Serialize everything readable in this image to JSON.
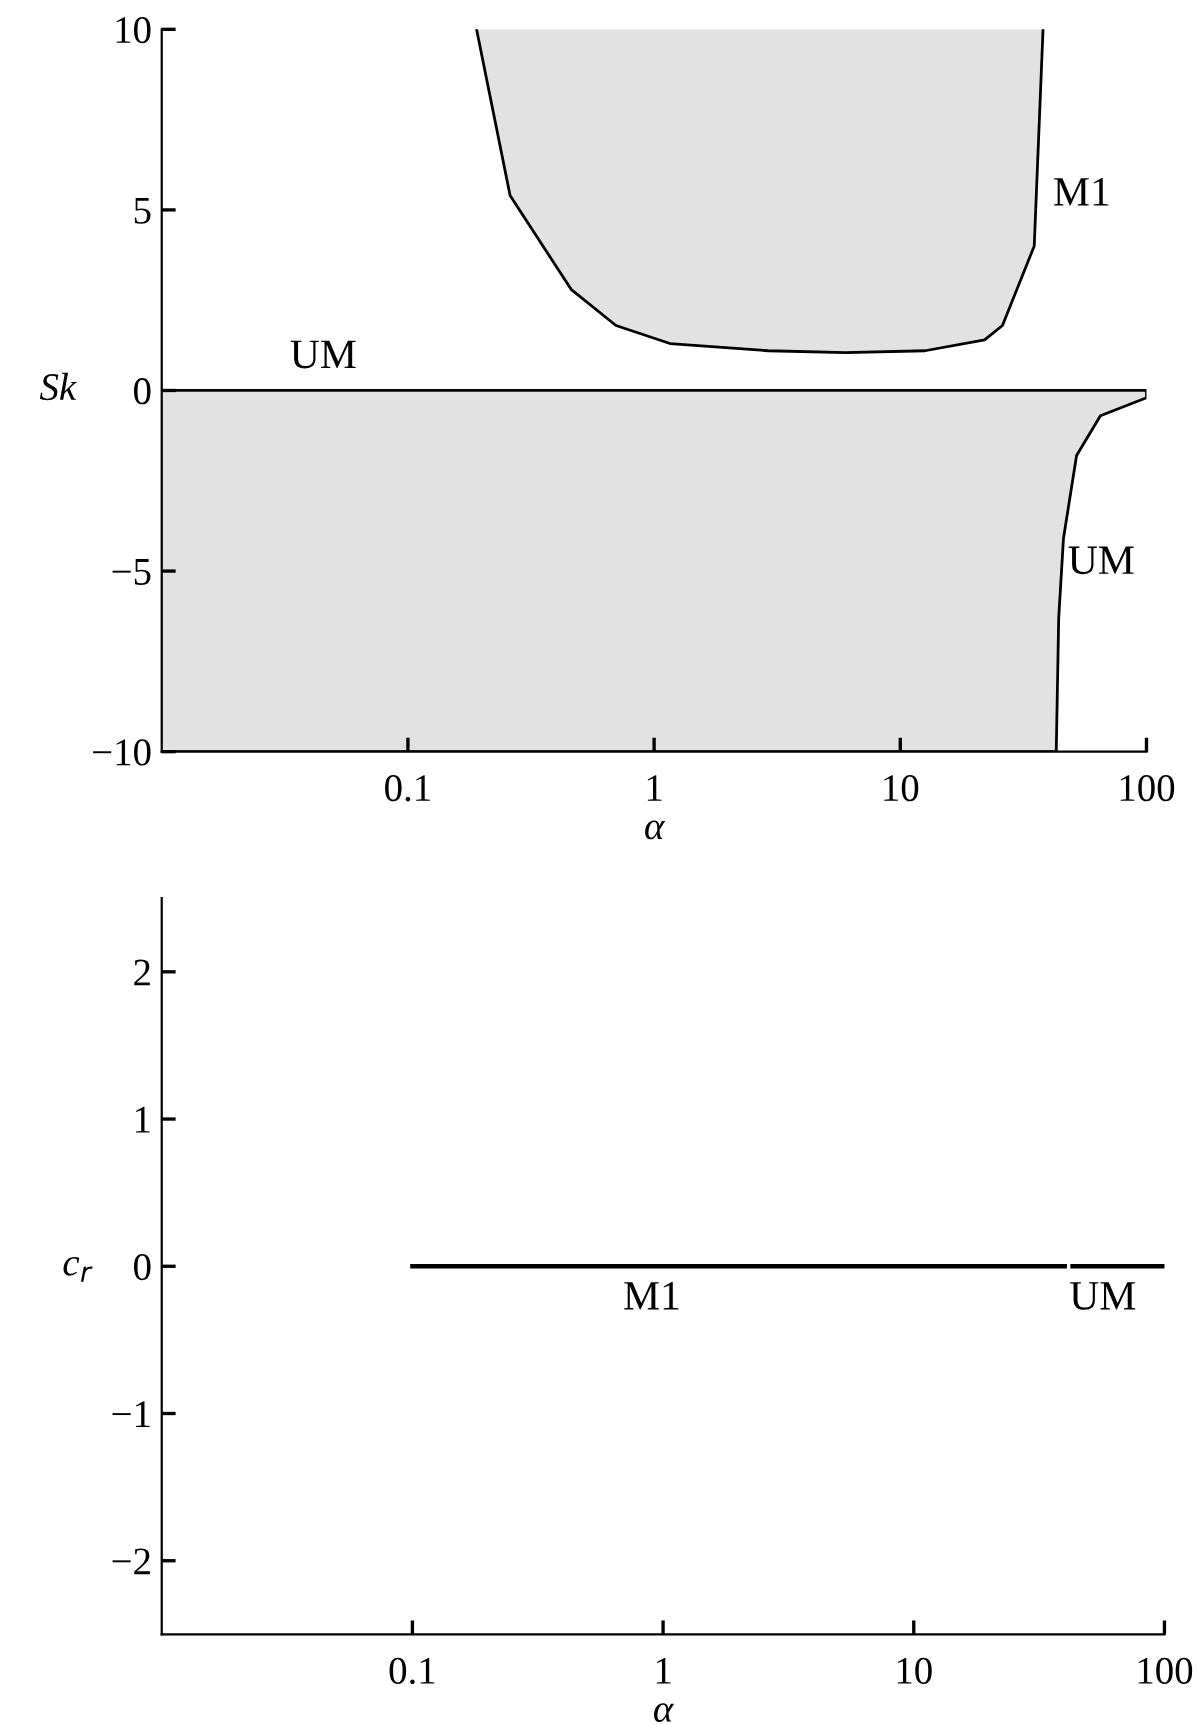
{
  "chart_data": [
    {
      "type": "area",
      "xlabel": "α",
      "ylabel": "Sk",
      "log": "x",
      "grid": false,
      "xlim": [
        0.01,
        100
      ],
      "ylim": [
        -10,
        10
      ],
      "xticks": [
        0.1,
        1,
        10,
        100
      ],
      "yticks": [
        -10,
        -5,
        0,
        5,
        10
      ],
      "series": [
        {
          "type": "area",
          "color": "#e2e2e2",
          "x": [
            0.19,
            0.26,
            0.46,
            0.7,
            1.16,
            2.9,
            6,
            12.6,
            22,
            26,
            35,
            38
          ],
          "values": [
            10,
            5.4,
            2.8,
            1.8,
            1.3,
            1.1,
            1.05,
            1.1,
            1.4,
            1.8,
            4.0,
            10
          ]
        },
        {
          "type": "area",
          "color": "#e2e2e2",
          "x": [
            0.01,
            43,
            44,
            46,
            52,
            65,
            100,
            100,
            0.01
          ],
          "values": [
            -10,
            -10,
            -6.3,
            -4.1,
            -1.8,
            -0.7,
            -0.2,
            0,
            0
          ]
        }
      ],
      "annotations": [
        "UM",
        "M1",
        "UM"
      ]
    },
    {
      "type": "line",
      "xlabel": "α",
      "ylabel": "c$_{r}$",
      "log": "x",
      "grid": false,
      "xlim": [
        0.01,
        100
      ],
      "ylim": [
        -2.5,
        2.5
      ],
      "xticks": [
        0.1,
        1,
        10,
        100
      ],
      "yticks": [
        -2,
        -1,
        0,
        1,
        2
      ],
      "series": [
        {
          "color": "#000000",
          "x": [
            0.1,
            40
          ],
          "values": [
            0,
            0
          ]
        },
        {
          "color": "#000000",
          "x": [
            43,
            100
          ],
          "values": [
            0,
            0
          ]
        }
      ],
      "annotations": [
        "M1",
        "UM"
      ]
    }
  ]
}
